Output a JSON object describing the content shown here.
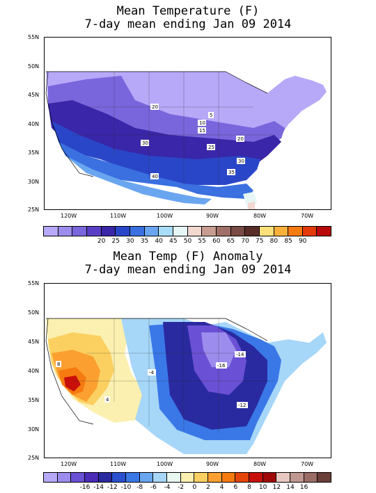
{
  "top_panel": {
    "title_line1": "Mean Temperature (F)",
    "title_line2": "7-day mean ending Jan 09 2014",
    "lat_labels": [
      "55N",
      "50N",
      "45N",
      "40N",
      "35N",
      "30N",
      "25N"
    ],
    "lon_labels": [
      "120W",
      "110W",
      "100W",
      "90W",
      "80W",
      "70W"
    ],
    "contour_labels": [
      "20",
      "5",
      "10",
      "15",
      "20",
      "30",
      "25",
      "30",
      "35",
      "40"
    ],
    "colorbar_labels": [
      "20",
      "25",
      "30",
      "35",
      "40",
      "45",
      "50",
      "55",
      "60",
      "65",
      "70",
      "75",
      "80",
      "85",
      "90"
    ],
    "colorbar_colors": [
      "#b8a8f8",
      "#9c8cee",
      "#7a66dc",
      "#5a3fc6",
      "#3a26a8",
      "#2a46c8",
      "#3a70e0",
      "#6aa6f0",
      "#a8dcf8",
      "#e6f6f6",
      "#f2d8d0",
      "#c89c90",
      "#a07068",
      "#7a4a44",
      "#5a2c28",
      "#fbe07a",
      "#fbb03a",
      "#f57a10",
      "#e43a0a",
      "#b80a0a"
    ]
  },
  "bottom_panel": {
    "title_line1": "Mean Temp (F) Anomaly",
    "title_line2": "7-day mean ending Jan 09 2014",
    "lat_labels": [
      "55N",
      "50N",
      "45N",
      "40N",
      "35N",
      "30N",
      "25N"
    ],
    "lon_labels": [
      "120W",
      "110W",
      "100W",
      "90W",
      "80W",
      "70W"
    ],
    "contour_labels": [
      "-14",
      "-16",
      "-12",
      "-4",
      "8",
      "4"
    ],
    "colorbar_labels": [
      "-16",
      "-14",
      "-12",
      "-10",
      "-8",
      "-6",
      "-4",
      "-2",
      "0",
      "2",
      "4",
      "6",
      "8",
      "10",
      "12",
      "14",
      "16"
    ],
    "colorbar_colors": [
      "#b8a8f8",
      "#9c8cee",
      "#6a50d4",
      "#4a2cb8",
      "#2a2aa0",
      "#2a50d0",
      "#3a78e8",
      "#6aa6f0",
      "#a6d6f8",
      "#e8f8f0",
      "#fbf0b0",
      "#fbd060",
      "#fba030",
      "#f57a10",
      "#e4460a",
      "#c8100a",
      "#a00808",
      "#e8c8c0",
      "#c09890",
      "#9a6c64",
      "#6a4038"
    ]
  }
}
